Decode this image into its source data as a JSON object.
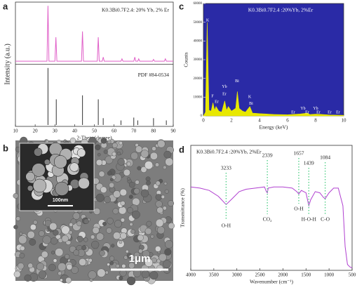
{
  "chart_data": [
    {
      "type": "line",
      "panel": "a",
      "xlabel": "2-Theta (degree)",
      "ylabel": "Intensity (a.u.)",
      "xlim": [
        10,
        90
      ],
      "xticks": [
        10,
        20,
        30,
        40,
        50,
        60,
        70,
        80,
        90
      ],
      "ylim": [
        0,
        100
      ],
      "series": [
        {
          "name": "K0.3Bi0.7F2.4: 20% Yb, 2% Er",
          "color": "#e060c8",
          "style": "line",
          "x": [
            10,
            26,
            26.5,
            27,
            30,
            30.5,
            31,
            43.5,
            44,
            44.5,
            51.5,
            52,
            52.5,
            54,
            54.5,
            55,
            63.5,
            64,
            64.5,
            70,
            70.5,
            71,
            72,
            72.5,
            73,
            79.5,
            80,
            80.5,
            85.5,
            86,
            86.5,
            90
          ],
          "values": [
            3,
            3,
            100,
            3,
            3,
            45,
            3,
            3,
            55,
            3,
            3,
            45,
            3,
            3,
            10,
            3,
            3,
            7,
            3,
            3,
            10,
            3,
            3,
            7,
            3,
            3,
            6,
            3,
            3,
            7,
            3,
            3
          ]
        },
        {
          "name": "PDF #84-0534",
          "color": "#333333",
          "style": "stick",
          "x": [
            26.5,
            30.7,
            44,
            52,
            54.5,
            63.5,
            70,
            72,
            80,
            86.5
          ],
          "values": [
            100,
            45,
            52,
            45,
            12,
            8,
            13,
            8,
            12,
            8
          ]
        }
      ]
    },
    {
      "type": "image",
      "panel": "b",
      "scale_bars": [
        "100nm",
        "1μm"
      ]
    },
    {
      "type": "area",
      "panel": "c",
      "title": "K0.3Bi0.7F2.4 :20%Yb, 2%Er",
      "xlabel": "Energy (keV)",
      "ylabel": "Counts",
      "xlim": [
        0,
        10
      ],
      "xticks": [
        0,
        2,
        4,
        6,
        8,
        10
      ],
      "ylim": [
        0,
        60000
      ],
      "yticks": [
        0,
        10000,
        20000,
        30000,
        40000,
        50000,
        60000
      ],
      "color": "#e8e800",
      "background": "#2a2aa6",
      "x": [
        0,
        0.15,
        0.27,
        0.4,
        0.55,
        0.68,
        0.8,
        0.9,
        1.1,
        1.3,
        1.52,
        1.65,
        1.78,
        2.0,
        2.3,
        2.42,
        2.55,
        2.8,
        3.0,
        3.31,
        3.5,
        4,
        5,
        6,
        6.9,
        7.4,
        7.6,
        8.0,
        8.4,
        9,
        10
      ],
      "values": [
        0,
        2000,
        50000,
        3000,
        2500,
        7000,
        3000,
        5000,
        2500,
        2000,
        8000,
        3000,
        5000,
        2500,
        4000,
        13000,
        4000,
        2500,
        2000,
        5000,
        1500,
        1200,
        800,
        600,
        1000,
        1500,
        700,
        900,
        800,
        500,
        300
      ],
      "annotations": [
        "K",
        "F",
        "Er",
        "Yb",
        "Er",
        "Bi",
        "K",
        "Bi",
        "Er",
        "Yb",
        "Er",
        "Yb",
        "Er",
        "Er",
        "Er"
      ]
    },
    {
      "type": "line",
      "panel": "d",
      "title": "K0.3Bi0.7F2.4 :20%Yb, 2%Er",
      "xlabel": "Wavenumber (cm⁻¹)",
      "ylabel": "Transmittance (%)",
      "xlim": [
        4000,
        500
      ],
      "xticks": [
        4000,
        3500,
        3000,
        2500,
        2000,
        1500,
        1000,
        500
      ],
      "ylim": [
        0,
        100
      ],
      "series": [
        {
          "color": "#b040d0",
          "style": "line",
          "x": [
            4000,
            3800,
            3600,
            3400,
            3233,
            3100,
            2950,
            2800,
            2600,
            2400,
            2360,
            2339,
            2320,
            2200,
            2000,
            1800,
            1700,
            1657,
            1600,
            1500,
            1439,
            1400,
            1300,
            1200,
            1120,
            1084,
            1000,
            900,
            800,
            700,
            650,
            600,
            550,
            500
          ],
          "values": [
            71,
            70,
            68,
            63,
            56,
            61,
            67,
            69,
            70,
            71,
            67,
            66,
            70,
            71,
            71,
            70,
            67,
            65,
            68,
            66,
            55,
            60,
            67,
            66,
            62,
            61,
            66,
            70,
            70,
            55,
            20,
            5,
            3,
            2
          ]
        }
      ],
      "peaks": [
        {
          "value": 3233,
          "assignment": "O-H"
        },
        {
          "value": 2339,
          "assignment": "CO₂"
        },
        {
          "value": 1657,
          "assignment": "O-H"
        },
        {
          "value": 1439,
          "assignment": "H-O-H"
        },
        {
          "value": 1084,
          "assignment": "C-O"
        }
      ]
    }
  ]
}
